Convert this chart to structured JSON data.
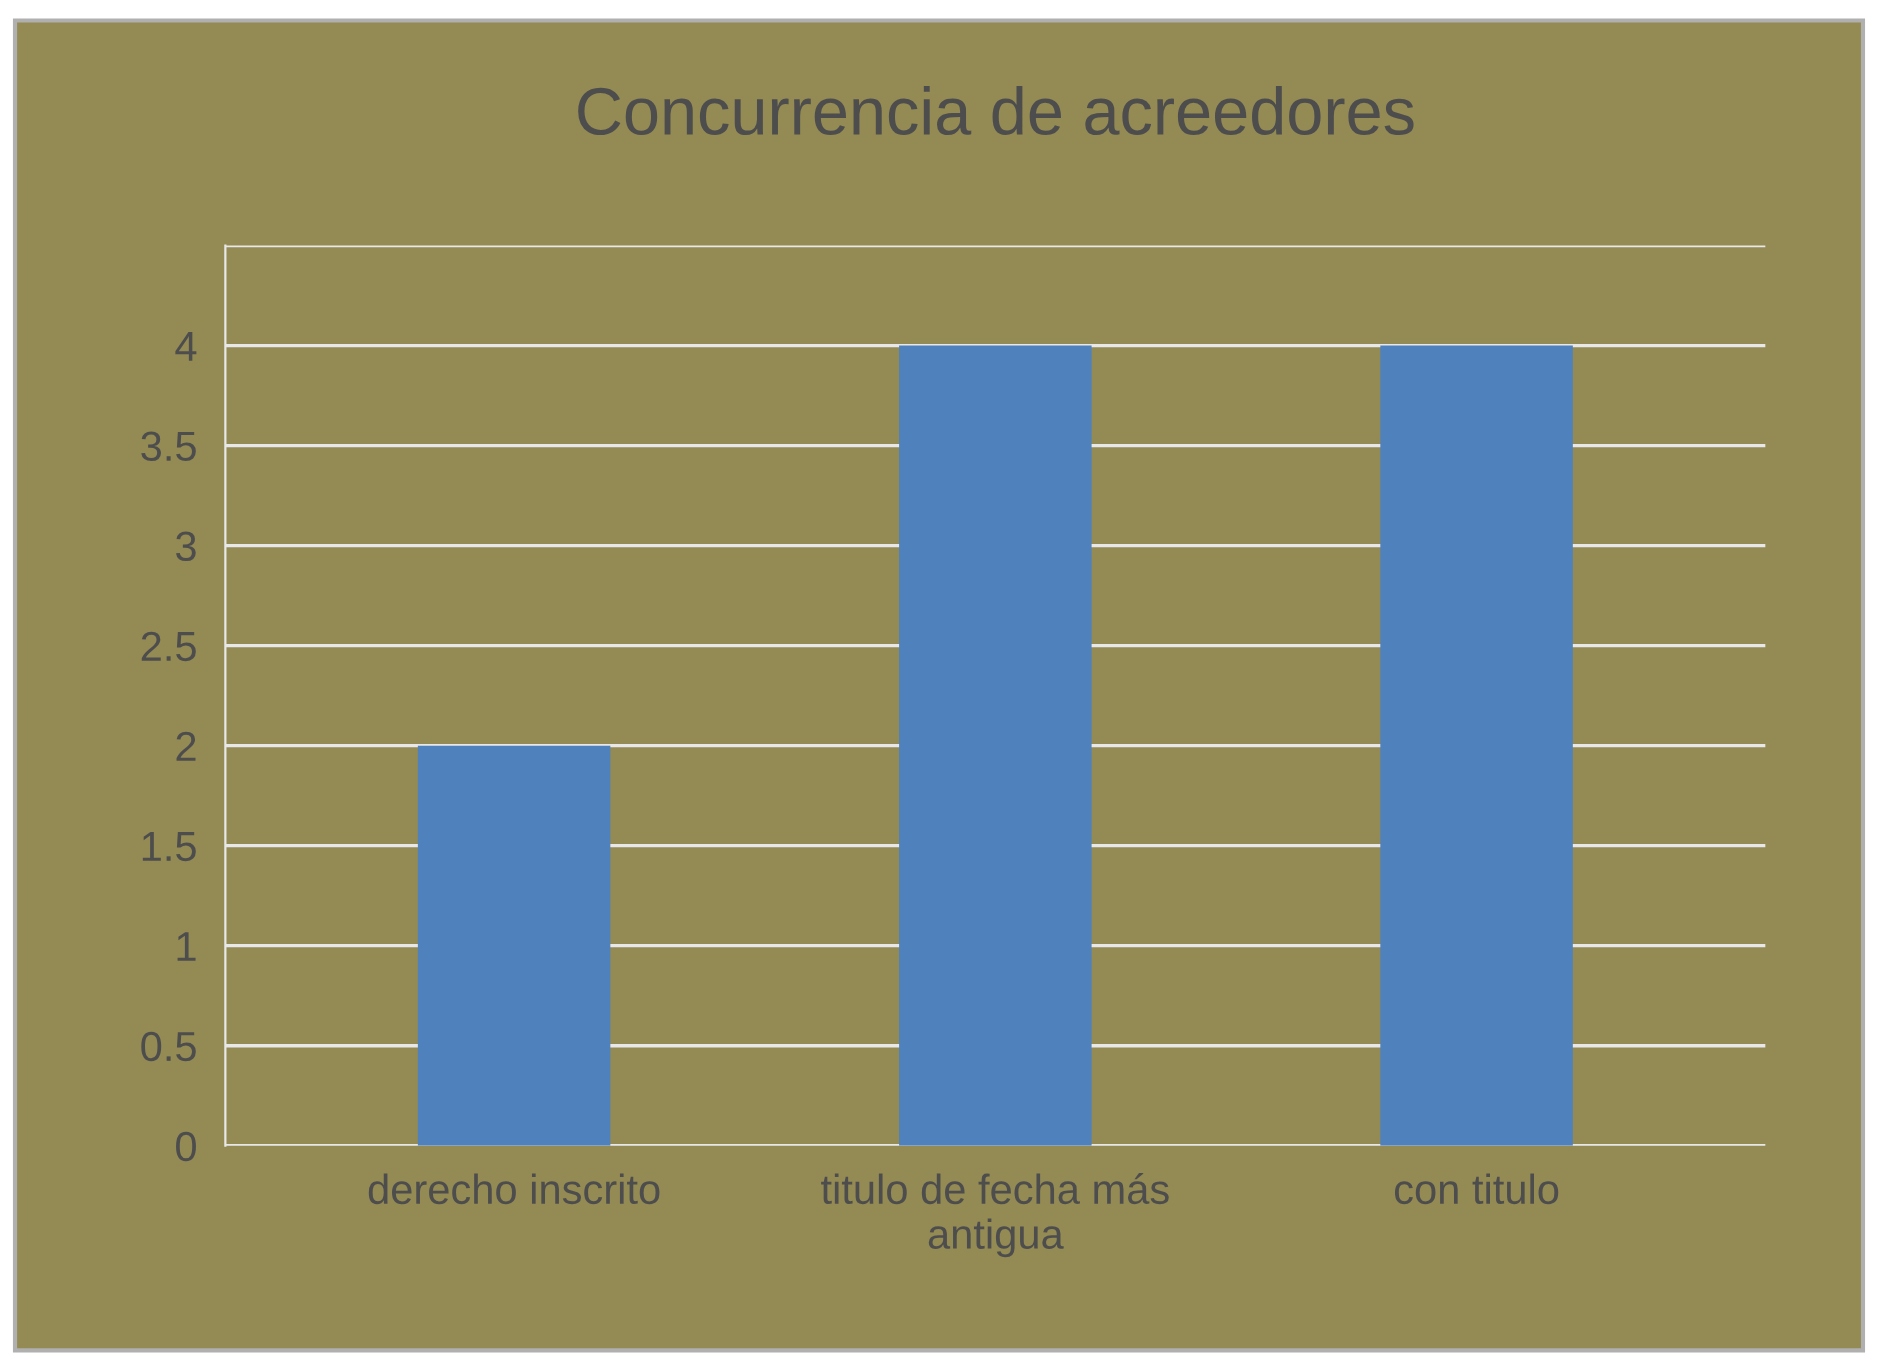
{
  "chart_data": {
    "type": "bar",
    "title": "Concurrencia de acreedores",
    "categories": [
      "derecho inscrito",
      "titulo de fecha más antigua",
      "con titulo"
    ],
    "values": [
      2,
      4,
      4
    ],
    "color": "#4f81bd",
    "ylim": [
      0,
      4.5
    ],
    "yticks": [
      0,
      0.5,
      1,
      1.5,
      2,
      2.5,
      3,
      3.5,
      4,
      {
        "value": 4.5,
        "label": null
      }
    ],
    "grid": "y"
  }
}
